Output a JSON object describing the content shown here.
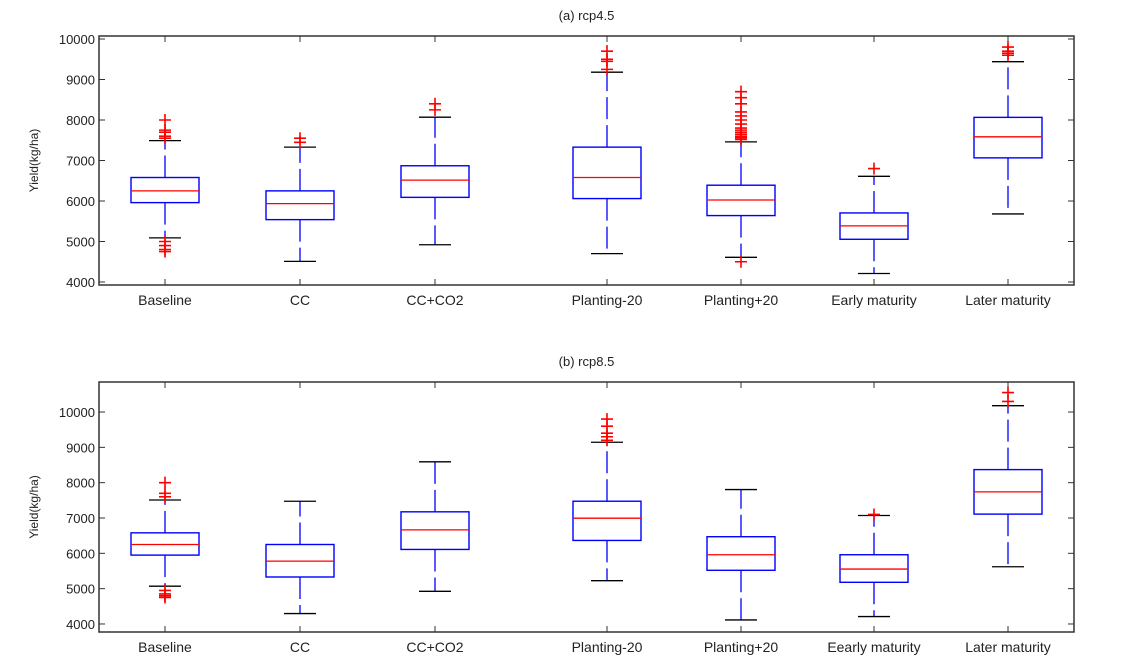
{
  "chart_data": [
    {
      "type": "box",
      "title": "(a) rcp4.5",
      "xlabel": "",
      "ylabel": "Yield(kg/ha)",
      "ylim": [
        3926,
        10074
      ],
      "yticks": [
        4000,
        5000,
        6000,
        7000,
        8000,
        9000,
        10000
      ],
      "categories": [
        "Baseline",
        "CC",
        "CC+CO2",
        "Planting-20",
        "Planting+20",
        "Early maturity",
        "Later maturity"
      ],
      "boxes": [
        {
          "q1": 5960,
          "median": 6250,
          "q3": 6580,
          "whisker_low": 5090,
          "whisker_high": 7490,
          "outliers": [
            7550,
            7600,
            7700,
            7750,
            8000,
            5000,
            4900,
            4800,
            4750
          ]
        },
        {
          "q1": 5540,
          "median": 5935,
          "q3": 6250,
          "whisker_low": 4510,
          "whisker_high": 7330,
          "outliers": [
            7450,
            7550
          ]
        },
        {
          "q1": 6090,
          "median": 6515,
          "q3": 6870,
          "whisker_low": 4920,
          "whisker_high": 8070,
          "outliers": [
            8250,
            8400
          ]
        },
        {
          "q1": 6060,
          "median": 6580,
          "q3": 7330,
          "whisker_low": 4700,
          "whisker_high": 9180,
          "outliers": [
            9250,
            9450,
            9500,
            9700
          ]
        },
        {
          "q1": 5640,
          "median": 6025,
          "q3": 6390,
          "whisker_low": 4610,
          "whisker_high": 7460,
          "outliers": [
            7520,
            7560,
            7600,
            7650,
            7700,
            7750,
            7800,
            7900,
            8000,
            8100,
            8200,
            8400,
            8550,
            8700,
            4500
          ]
        },
        {
          "q1": 5055,
          "median": 5385,
          "q3": 5705,
          "whisker_low": 4210,
          "whisker_high": 6610,
          "outliers": [
            6800
          ]
        },
        {
          "q1": 7065,
          "median": 7585,
          "q3": 8065,
          "whisker_low": 5680,
          "whisker_high": 9440,
          "outliers": [
            9600,
            9650,
            9700,
            9800
          ]
        }
      ]
    },
    {
      "type": "box",
      "title": "(b) rcp8.5",
      "xlabel": "",
      "ylabel": "Yield(kg/ha)",
      "ylim": [
        3773,
        10850
      ],
      "yticks": [
        4000,
        5000,
        6000,
        7000,
        8000,
        9000,
        10000
      ],
      "categories": [
        "Baseline",
        "CC",
        "CC+CO2",
        "Planting-20",
        "Planting+20",
        "Eearly maturity",
        "Later maturity"
      ],
      "boxes": [
        {
          "q1": 5950,
          "median": 6250,
          "q3": 6580,
          "whisker_low": 5070,
          "whisker_high": 7510,
          "outliers": [
            7600,
            7700,
            8000,
            4950,
            4850,
            4800,
            4750
          ]
        },
        {
          "q1": 5330,
          "median": 5780,
          "q3": 6250,
          "whisker_low": 4295,
          "whisker_high": 7475,
          "outliers": []
        },
        {
          "q1": 6110,
          "median": 6665,
          "q3": 7175,
          "whisker_low": 4925,
          "whisker_high": 8590,
          "outliers": []
        },
        {
          "q1": 6365,
          "median": 6995,
          "q3": 7475,
          "whisker_low": 5225,
          "whisker_high": 9145,
          "outliers": [
            9200,
            9300,
            9400,
            9600,
            9800
          ]
        },
        {
          "q1": 5520,
          "median": 5960,
          "q3": 6470,
          "whisker_low": 4115,
          "whisker_high": 7805,
          "outliers": []
        },
        {
          "q1": 5180,
          "median": 5555,
          "q3": 5960,
          "whisker_low": 4210,
          "whisker_high": 7070,
          "outliers": [
            7100
          ]
        },
        {
          "q1": 7110,
          "median": 7740,
          "q3": 8370,
          "whisker_low": 5620,
          "whisker_high": 10180,
          "outliers": [
            10300,
            10550
          ]
        }
      ]
    }
  ],
  "colors": {
    "box": "#0000ff",
    "median": "#ff0000",
    "outlier": "#ff0000",
    "whisker_cap": "#000000",
    "axis": "#333333"
  }
}
